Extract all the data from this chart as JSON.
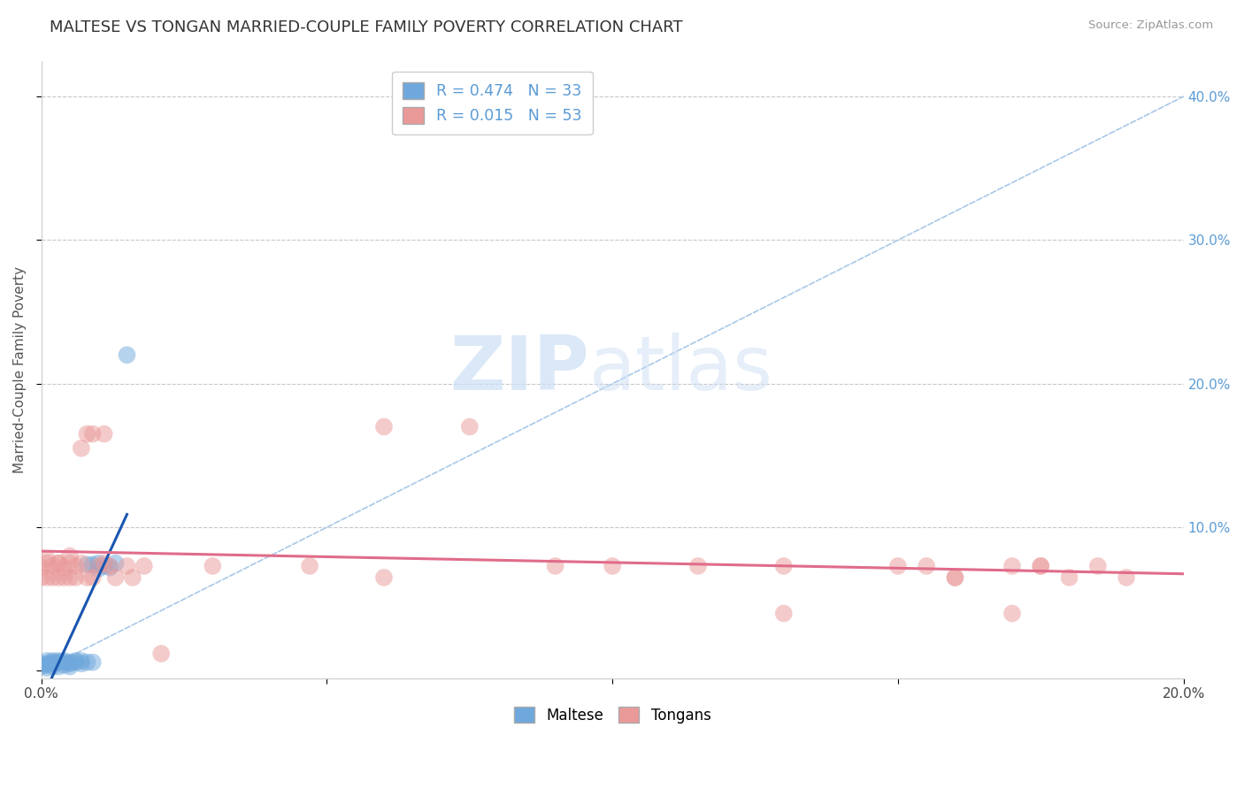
{
  "title": "MALTESE VS TONGAN MARRIED-COUPLE FAMILY POVERTY CORRELATION CHART",
  "source": "Source: ZipAtlas.com",
  "ylabel": "Married-Couple Family Poverty",
  "xlim": [
    0.0,
    0.2
  ],
  "ylim": [
    -0.005,
    0.425
  ],
  "maltese_R": 0.474,
  "maltese_N": 33,
  "tongan_R": 0.015,
  "tongan_N": 53,
  "maltese_color": "#6fa8dc",
  "tongan_color": "#ea9999",
  "maltese_line_color": "#1a56b0",
  "tongan_line_color": "#e06c8a",
  "diagonal_color": "#a8c8e8",
  "background_color": "#ffffff",
  "grid_color": "#c8c8c8",
  "watermark_zip": "ZIP",
  "watermark_atlas": "atlas",
  "maltese_x": [
    0.0,
    0.0,
    0.001,
    0.001,
    0.001,
    0.001,
    0.002,
    0.002,
    0.002,
    0.002,
    0.003,
    0.003,
    0.003,
    0.004,
    0.004,
    0.004,
    0.005,
    0.005,
    0.005,
    0.006,
    0.006,
    0.007,
    0.007,
    0.008,
    0.008,
    0.009,
    0.009,
    0.01,
    0.01,
    0.011,
    0.012,
    0.013,
    0.015
  ],
  "maltese_y": [
    0.003,
    0.005,
    0.002,
    0.004,
    0.005,
    0.007,
    0.003,
    0.005,
    0.006,
    0.007,
    0.003,
    0.006,
    0.007,
    0.004,
    0.006,
    0.007,
    0.003,
    0.005,
    0.006,
    0.006,
    0.007,
    0.005,
    0.007,
    0.006,
    0.074,
    0.006,
    0.074,
    0.071,
    0.075,
    0.073,
    0.072,
    0.075,
    0.22
  ],
  "tongan_x": [
    0.0,
    0.0,
    0.001,
    0.001,
    0.001,
    0.002,
    0.002,
    0.003,
    0.003,
    0.003,
    0.004,
    0.004,
    0.005,
    0.005,
    0.005,
    0.006,
    0.006,
    0.007,
    0.007,
    0.008,
    0.008,
    0.009,
    0.009,
    0.01,
    0.011,
    0.011,
    0.012,
    0.013,
    0.015,
    0.016,
    0.018,
    0.021,
    0.03,
    0.047,
    0.06,
    0.075,
    0.09,
    0.1,
    0.115,
    0.13,
    0.15,
    0.155,
    0.16,
    0.17,
    0.175,
    0.18,
    0.185,
    0.19,
    0.16,
    0.175,
    0.13,
    0.17,
    0.06
  ],
  "tongan_y": [
    0.072,
    0.065,
    0.078,
    0.065,
    0.075,
    0.065,
    0.073,
    0.075,
    0.065,
    0.075,
    0.072,
    0.065,
    0.075,
    0.065,
    0.08,
    0.065,
    0.073,
    0.075,
    0.155,
    0.165,
    0.065,
    0.165,
    0.065,
    0.073,
    0.075,
    0.165,
    0.073,
    0.065,
    0.073,
    0.065,
    0.073,
    0.012,
    0.073,
    0.073,
    0.17,
    0.17,
    0.073,
    0.073,
    0.073,
    0.073,
    0.073,
    0.073,
    0.065,
    0.073,
    0.073,
    0.065,
    0.073,
    0.065,
    0.065,
    0.073,
    0.04,
    0.04,
    0.065
  ]
}
